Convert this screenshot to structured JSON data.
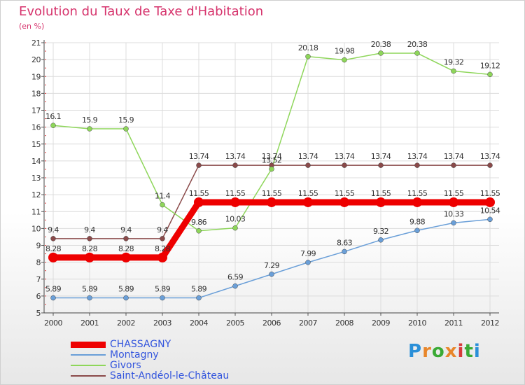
{
  "title": "Evolution du Taux de Taxe d'Habitation",
  "subtitle": "(en %)",
  "logo_text": "Proxiti",
  "chart_data": {
    "type": "line",
    "x": [
      "2000",
      "2001",
      "2002",
      "2003",
      "2004",
      "2005",
      "2006",
      "2007",
      "2008",
      "2009",
      "2010",
      "2011",
      "2012"
    ],
    "ylim": [
      5,
      21
    ],
    "yticks": [
      5,
      6,
      7,
      8,
      9,
      10,
      11,
      12,
      13,
      14,
      15,
      16,
      17,
      18,
      19,
      20,
      21
    ],
    "grid": true,
    "legend_placement": "bottom-left",
    "series": [
      {
        "name": "CHASSAGNY",
        "color": "#ee0000",
        "values": [
          8.28,
          8.28,
          8.28,
          8.28,
          11.55,
          11.55,
          11.55,
          11.55,
          11.55,
          11.55,
          11.55,
          11.55,
          11.55
        ],
        "labels": [
          "8.28",
          "8.28",
          "8.28",
          "8.28",
          "11.55",
          "11.55",
          "11.55",
          "11.55",
          "11.55",
          "11.55",
          "11.55",
          "11.55",
          "11.55"
        ]
      },
      {
        "name": "Montagny",
        "color": "#6a9fd8",
        "values": [
          5.89,
          5.89,
          5.89,
          5.89,
          5.89,
          6.59,
          7.29,
          7.99,
          8.63,
          9.32,
          9.88,
          10.33,
          10.54
        ],
        "labels": [
          "5.89",
          "5.89",
          "5.89",
          "5.89",
          "5.89",
          "6.59",
          "7.29",
          "7.99",
          "8.63",
          "9.32",
          "9.88",
          "10.33",
          "10.54"
        ]
      },
      {
        "name": "Givors",
        "color": "#8ed65a",
        "values": [
          16.1,
          15.9,
          15.9,
          11.4,
          9.86,
          10.03,
          13.52,
          20.18,
          19.98,
          20.38,
          20.38,
          19.32,
          19.12
        ],
        "labels": [
          "16.1",
          "15.9",
          "15.9",
          "11.4",
          "9.86",
          "10.03",
          "13.52",
          "20.18",
          "19.98",
          "20.38",
          "20.38",
          "19.32",
          "19.12"
        ]
      },
      {
        "name": "Saint-Andéol-le-Château",
        "color": "#8a4a4a",
        "values": [
          9.4,
          9.4,
          9.4,
          9.4,
          13.74,
          13.74,
          13.74,
          13.74,
          13.74,
          13.74,
          13.74,
          13.74,
          13.74
        ],
        "labels": [
          "9.4",
          "9.4",
          "9.4",
          "9.4",
          "13.74",
          "13.74",
          "13.74",
          "13.74",
          "13.74",
          "13.74",
          "13.74",
          "13.74",
          "13.74"
        ]
      }
    ]
  }
}
